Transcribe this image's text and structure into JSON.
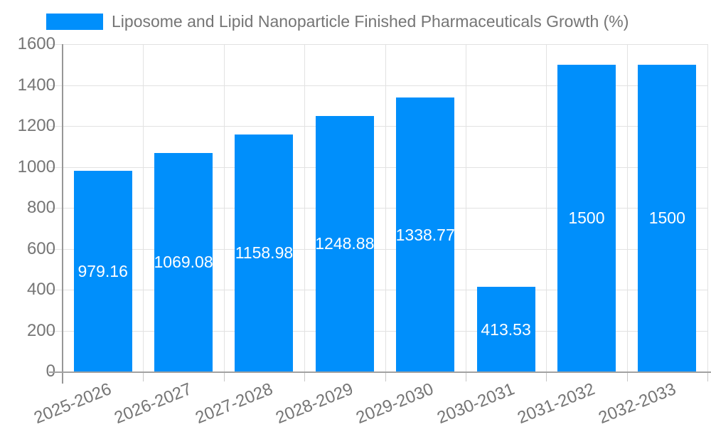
{
  "legend": {
    "label": "Liposome and Lipid Nanoparticle Finished Pharmaceuticals Growth (%)",
    "swatch_color": "#008FFB"
  },
  "chart_data": {
    "type": "bar",
    "title": "Liposome and Lipid Nanoparticle Finished Pharmaceuticals Growth (%)",
    "categories": [
      "2025-2026",
      "2026-2027",
      "2027-2028",
      "2028-2029",
      "2029-2030",
      "2030-2031",
      "2031-2032",
      "2032-2033"
    ],
    "values": [
      979.16,
      1069.08,
      1158.98,
      1248.88,
      1338.77,
      413.53,
      1500,
      1500
    ],
    "value_labels": [
      "979.16",
      "1069.08",
      "1158.98",
      "1248.88",
      "1338.77",
      "413.53",
      "1500",
      "1500"
    ],
    "xlabel": "",
    "ylabel": "",
    "ylim": [
      0,
      1600
    ],
    "yticks": [
      0,
      200,
      400,
      600,
      800,
      1000,
      1200,
      1400,
      1600
    ],
    "grid": true,
    "legend_position": "top",
    "bar_color": "#008FFB",
    "value_label_color": "#ffffff",
    "axis_text_color": "#757575"
  }
}
